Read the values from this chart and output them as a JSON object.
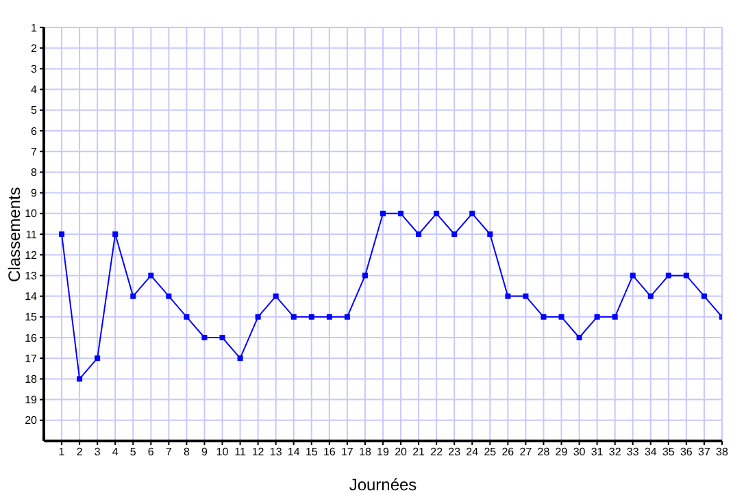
{
  "chart_data": {
    "type": "line",
    "xlabel": "Journées",
    "ylabel": "Classements",
    "x": [
      1,
      2,
      3,
      4,
      5,
      6,
      7,
      8,
      9,
      10,
      11,
      12,
      13,
      14,
      15,
      16,
      17,
      18,
      19,
      20,
      21,
      22,
      23,
      24,
      25,
      26,
      27,
      28,
      29,
      30,
      31,
      32,
      33,
      34,
      35,
      36,
      37,
      38
    ],
    "series": [
      {
        "color": "#0000ff",
        "values": [
          11,
          18,
          17,
          11,
          14,
          13,
          14,
          15,
          16,
          16,
          17,
          15,
          14,
          15,
          15,
          15,
          15,
          13,
          10,
          10,
          11,
          10,
          11,
          10,
          11,
          14,
          14,
          15,
          15,
          16,
          15,
          15,
          13,
          14,
          13,
          13,
          14,
          15
        ]
      }
    ],
    "xlim": [
      0,
      38
    ],
    "xticks": [
      1,
      2,
      3,
      4,
      5,
      6,
      7,
      8,
      9,
      10,
      11,
      12,
      13,
      14,
      15,
      16,
      17,
      18,
      19,
      20,
      21,
      22,
      23,
      24,
      25,
      26,
      27,
      28,
      29,
      30,
      31,
      32,
      33,
      34,
      35,
      36,
      37,
      38
    ],
    "ylim": [
      21,
      1
    ],
    "yticks": [
      1,
      2,
      3,
      4,
      5,
      6,
      7,
      8,
      9,
      10,
      11,
      12,
      13,
      14,
      15,
      16,
      17,
      18,
      19,
      20
    ],
    "grid": true,
    "marker": "square",
    "line_style": "solid",
    "legend": false
  }
}
